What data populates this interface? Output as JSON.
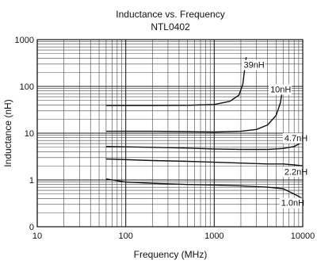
{
  "chart_data": {
    "type": "line",
    "title": "Inductance vs. Frequency",
    "subtitle": "NTL0402",
    "xlabel": "Frequency (MHz)",
    "ylabel": "Inductance (nH)",
    "xscale": "log",
    "yscale": "log",
    "xlim": [
      10,
      10000
    ],
    "ylim": [
      0.1,
      1000
    ],
    "xticks": [
      {
        "value": 10,
        "label": "10"
      },
      {
        "value": 100,
        "label": "100"
      },
      {
        "value": 1000,
        "label": "1000"
      },
      {
        "value": 10000,
        "label": "10000"
      }
    ],
    "yticks": [
      {
        "value": 0.1,
        "label": "0"
      },
      {
        "value": 1,
        "label": "1"
      },
      {
        "value": 10,
        "label": "10"
      },
      {
        "value": 100,
        "label": "100"
      },
      {
        "value": 1000,
        "label": "1000"
      }
    ],
    "grid": true,
    "series": [
      {
        "name": "39nH",
        "label_at": [
          2150,
          250
        ],
        "x": [
          60,
          200,
          500,
          1000,
          1500,
          1900,
          2100,
          2300
        ],
        "y": [
          39,
          39,
          39.5,
          41,
          48,
          65,
          110,
          420
        ]
      },
      {
        "name": "10nH",
        "label_at": [
          4300,
          75
        ],
        "x": [
          60,
          200,
          500,
          1000,
          2000,
          3000,
          4000,
          5000,
          5600,
          6000
        ],
        "y": [
          11,
          11,
          10.8,
          10.6,
          11,
          12,
          15,
          24,
          45,
          110
        ]
      },
      {
        "name": "4.7nH",
        "label_at": [
          6200,
          6.8
        ],
        "x": [
          60,
          200,
          500,
          1000,
          2000,
          4000,
          6000,
          8000,
          10000
        ],
        "y": [
          5.2,
          5,
          4.8,
          4.6,
          4.5,
          4.5,
          4.7,
          5.2,
          6.5
        ]
      },
      {
        "name": "2.2nH",
        "label_at": [
          6200,
          1.3
        ],
        "x": [
          60,
          200,
          500,
          1000,
          2000,
          4000,
          6000,
          8000,
          10000
        ],
        "y": [
          2.8,
          2.6,
          2.5,
          2.4,
          2.3,
          2.2,
          2.2,
          2.1,
          2
        ]
      },
      {
        "name": "1.0nH",
        "label_at": [
          5700,
          0.28
        ],
        "x": [
          60,
          100,
          200,
          500,
          1000,
          2000,
          4000,
          6000,
          8000,
          10000
        ],
        "y": [
          1.05,
          0.9,
          0.85,
          0.8,
          0.78,
          0.75,
          0.7,
          0.65,
          0.5,
          0.4
        ]
      }
    ]
  }
}
